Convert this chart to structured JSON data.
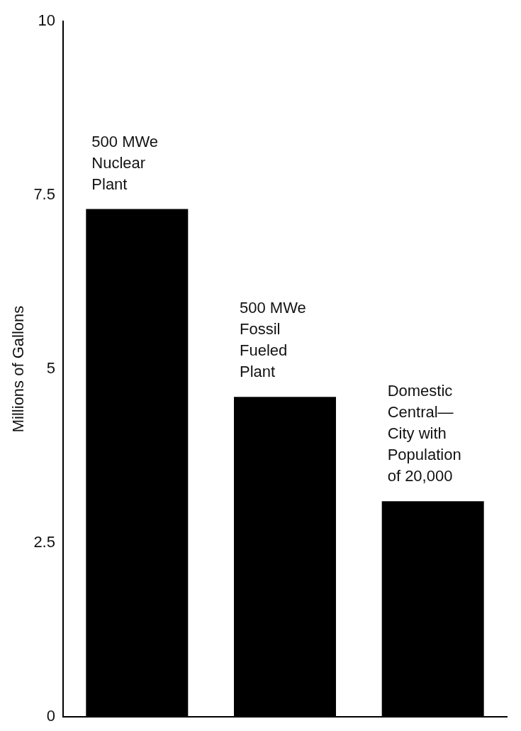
{
  "chart_data": {
    "type": "bar",
    "ylabel": "Millions of Gallons",
    "categories": [
      "500 MWe\nNuclear\nPlant",
      "500 MWe\nFossil\nFueled\nPlant",
      "Domestic\nCentral—\nCity with\nPopulation\nof 20,000"
    ],
    "values": [
      7.3,
      4.6,
      3.1
    ],
    "color": "#000000",
    "ylim": [
      0,
      10
    ],
    "yticks": [
      0,
      {
        "value": 2.5,
        "label": "2.5"
      },
      5,
      {
        "value": 7.5,
        "label": "7.5"
      },
      10
    ],
    "grid": false,
    "legend": false
  }
}
